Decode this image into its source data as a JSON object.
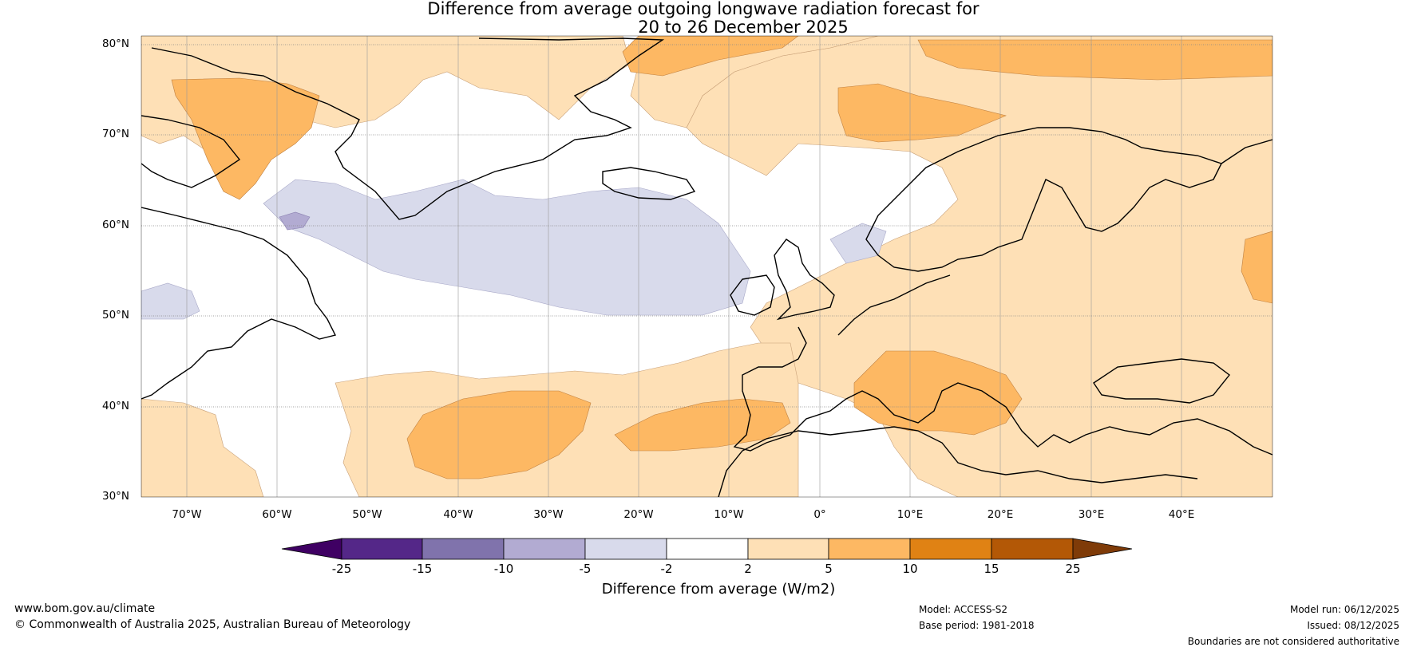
{
  "title": {
    "line1": "Difference from average outgoing longwave radiation forecast for",
    "line2": "20 to 26 December 2025"
  },
  "map": {
    "lat_labels": [
      "80°N",
      "70°N",
      "60°N",
      "50°N",
      "40°N",
      "30°N"
    ],
    "lon_labels": [
      "70°W",
      "60°W",
      "50°W",
      "40°W",
      "30°W",
      "20°W",
      "10°W",
      "0°",
      "10°E",
      "20°E",
      "30°E",
      "40°E"
    ],
    "lat_range": [
      30,
      81
    ],
    "lon_range": [
      -75,
      50
    ]
  },
  "colorbar": {
    "label": "Difference from average (W/m2)",
    "ticks": [
      "-25",
      "-15",
      "-10",
      "-5",
      "-2",
      "2",
      "5",
      "10",
      "15",
      "25"
    ],
    "colors": [
      "#3f0063",
      "#542788",
      "#8073ac",
      "#b2abd2",
      "#d8daeb",
      "#ffffff",
      "#fee0b6",
      "#fdb863",
      "#e08214",
      "#b35806",
      "#7f3b08"
    ]
  },
  "footer": {
    "website": "www.bom.gov.au/climate",
    "copyright": "© Commonwealth of Australia 2025, Australian Bureau of Meteorology",
    "model": "Model: ACCESS-S2",
    "base_period": "Base period: 1981-2018",
    "model_run": "Model run: 06/12/2025",
    "issued": "Issued: 08/12/2025",
    "disclaimer": "Boundaries are not considered authoritative"
  }
}
